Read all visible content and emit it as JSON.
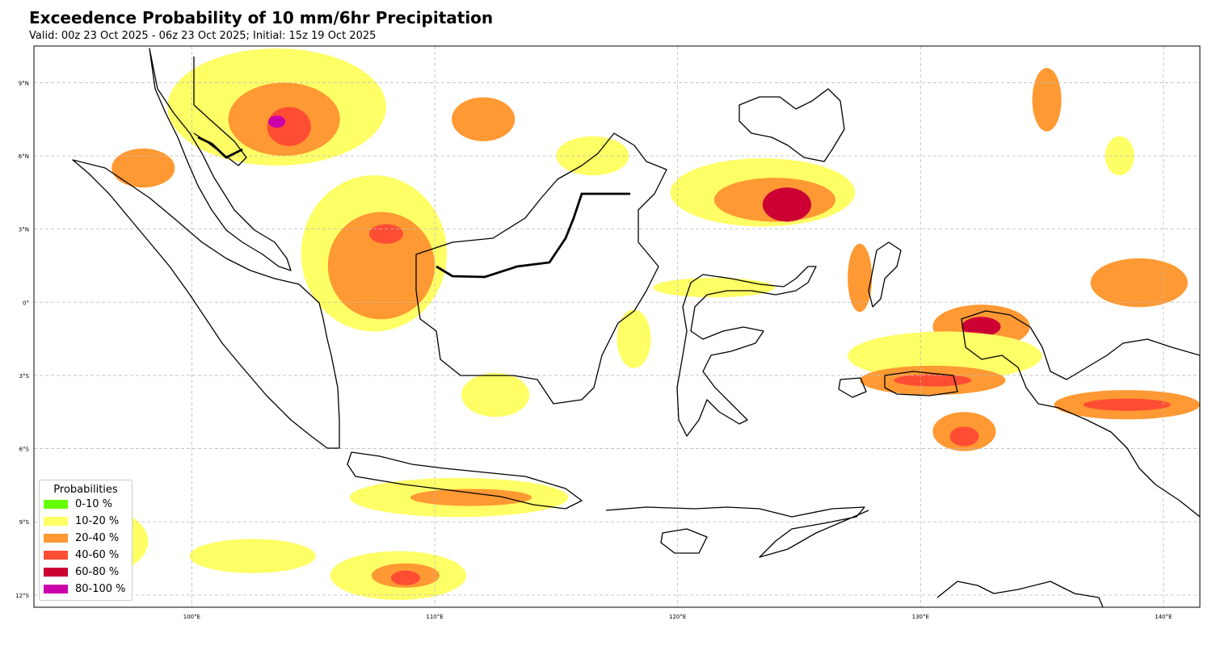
{
  "header": {
    "title": "Exceedence Probability of 10 mm/6hr Precipitation",
    "subtitle": "Valid: 00z 23 Oct 2025 - 06z 23 Oct 2025; Initial: 15z 19 Oct 2025"
  },
  "map": {
    "extent": {
      "lon": [
        93.5,
        141.5
      ],
      "lat": [
        -12.5,
        10.5
      ]
    },
    "lon_ticks": [
      {
        "value": 100,
        "label": "100°E"
      },
      {
        "value": 110,
        "label": "110°E"
      },
      {
        "value": 120,
        "label": "120°E"
      },
      {
        "value": 130,
        "label": "130°E"
      },
      {
        "value": 140,
        "label": "140°E"
      }
    ],
    "lat_ticks": [
      {
        "value": 9,
        "label": "9°N"
      },
      {
        "value": 6,
        "label": "6°N"
      },
      {
        "value": 3,
        "label": "3°N"
      },
      {
        "value": 0,
        "label": "0°"
      },
      {
        "value": -3,
        "label": "3°S"
      },
      {
        "value": -6,
        "label": "6°S"
      },
      {
        "value": -9,
        "label": "9°S"
      },
      {
        "value": -12,
        "label": "12°S"
      }
    ],
    "colors": {
      "grid": "#bbbbbb",
      "coast": "#000000"
    },
    "precip_areas": [
      {
        "level": "10-20",
        "lon": 103.5,
        "lat": 8.0,
        "rlon": 4.5,
        "rlat": 2.4
      },
      {
        "level": "20-40",
        "lon": 103.8,
        "lat": 7.5,
        "rlon": 2.3,
        "rlat": 1.5
      },
      {
        "level": "40-60",
        "lon": 104.0,
        "lat": 7.2,
        "rlon": 0.9,
        "rlat": 0.8
      },
      {
        "level": "80-100",
        "lon": 103.5,
        "lat": 7.4,
        "rlon": 0.35,
        "rlat": 0.25
      },
      {
        "level": "10-20",
        "lon": 107.5,
        "lat": 2.0,
        "rlon": 3.0,
        "rlat": 3.2
      },
      {
        "level": "20-40",
        "lon": 107.8,
        "lat": 1.5,
        "rlon": 2.2,
        "rlat": 2.2
      },
      {
        "level": "40-60",
        "lon": 108.0,
        "lat": 2.8,
        "rlon": 0.7,
        "rlat": 0.4
      },
      {
        "level": "20-40",
        "lon": 112.0,
        "lat": 7.5,
        "rlon": 1.3,
        "rlat": 0.9
      },
      {
        "level": "10-20",
        "lon": 116.5,
        "lat": 6.0,
        "rlon": 1.5,
        "rlat": 0.8
      },
      {
        "level": "10-20",
        "lon": 123.5,
        "lat": 4.5,
        "rlon": 3.8,
        "rlat": 1.4
      },
      {
        "level": "20-40",
        "lon": 124.0,
        "lat": 4.2,
        "rlon": 2.5,
        "rlat": 0.9
      },
      {
        "level": "60-80",
        "lon": 124.5,
        "lat": 4.0,
        "rlon": 1.0,
        "rlat": 0.7
      },
      {
        "level": "20-40",
        "lon": 135.2,
        "lat": 8.3,
        "rlon": 0.6,
        "rlat": 1.3
      },
      {
        "level": "10-20",
        "lon": 138.2,
        "lat": 6.0,
        "rlon": 0.6,
        "rlat": 0.8
      },
      {
        "level": "20-40",
        "lon": 139.0,
        "lat": 0.8,
        "rlon": 2.0,
        "rlat": 1.0
      },
      {
        "level": "20-40",
        "lon": 132.5,
        "lat": -1.0,
        "rlon": 2.0,
        "rlat": 0.9
      },
      {
        "level": "60-80",
        "lon": 132.5,
        "lat": -1.0,
        "rlon": 0.8,
        "rlat": 0.4
      },
      {
        "level": "10-20",
        "lon": 131.0,
        "lat": -2.2,
        "rlon": 4.0,
        "rlat": 1.0
      },
      {
        "level": "20-40",
        "lon": 130.5,
        "lat": -3.2,
        "rlon": 3.0,
        "rlat": 0.6
      },
      {
        "level": "40-60",
        "lon": 130.5,
        "lat": -3.2,
        "rlon": 1.6,
        "rlat": 0.25
      },
      {
        "level": "20-40",
        "lon": 131.8,
        "lat": -5.3,
        "rlon": 1.3,
        "rlat": 0.8
      },
      {
        "level": "40-60",
        "lon": 131.8,
        "lat": -5.5,
        "rlon": 0.6,
        "rlat": 0.4
      },
      {
        "level": "20-40",
        "lon": 138.5,
        "lat": -4.2,
        "rlon": 3.0,
        "rlat": 0.6
      },
      {
        "level": "40-60",
        "lon": 138.5,
        "lat": -4.2,
        "rlon": 1.8,
        "rlat": 0.25
      },
      {
        "level": "10-20",
        "lon": 118.2,
        "lat": -1.5,
        "rlon": 0.7,
        "rlat": 1.2
      },
      {
        "level": "10-20",
        "lon": 112.5,
        "lat": -3.8,
        "rlon": 1.4,
        "rlat": 0.9
      },
      {
        "level": "10-20",
        "lon": 111.0,
        "lat": -8.0,
        "rlon": 4.5,
        "rlat": 0.8
      },
      {
        "level": "20-40",
        "lon": 111.5,
        "lat": -8.0,
        "rlon": 2.5,
        "rlat": 0.35
      },
      {
        "level": "10-20",
        "lon": 108.5,
        "lat": -11.2,
        "rlon": 2.8,
        "rlat": 1.0
      },
      {
        "level": "20-40",
        "lon": 108.8,
        "lat": -11.2,
        "rlon": 1.4,
        "rlat": 0.5
      },
      {
        "level": "40-60",
        "lon": 108.8,
        "lat": -11.3,
        "rlon": 0.6,
        "rlat": 0.3
      },
      {
        "level": "10-20",
        "lon": 102.5,
        "lat": -10.4,
        "rlon": 2.6,
        "rlat": 0.7
      },
      {
        "level": "10-20",
        "lon": 96.0,
        "lat": -9.8,
        "rlon": 2.2,
        "rlat": 1.4
      },
      {
        "level": "20-40",
        "lon": 98.0,
        "lat": 5.5,
        "rlon": 1.3,
        "rlat": 0.8
      },
      {
        "level": "10-20",
        "lon": 121.5,
        "lat": 0.6,
        "rlon": 2.5,
        "rlat": 0.4
      },
      {
        "level": "20-40",
        "lon": 127.5,
        "lat": 1.0,
        "rlon": 0.5,
        "rlat": 1.4
      }
    ]
  },
  "legend": {
    "title": "Probabilities",
    "items": [
      {
        "label": "0-10 %",
        "color": "#66ff00"
      },
      {
        "label": "10-20 %",
        "color": "#ffff66"
      },
      {
        "label": "20-40 %",
        "color": "#ff9933"
      },
      {
        "label": "40-60 %",
        "color": "#ff4d33"
      },
      {
        "label": "60-80 %",
        "color": "#cc0033"
      },
      {
        "label": "80-100 %",
        "color": "#cc00aa"
      }
    ]
  }
}
